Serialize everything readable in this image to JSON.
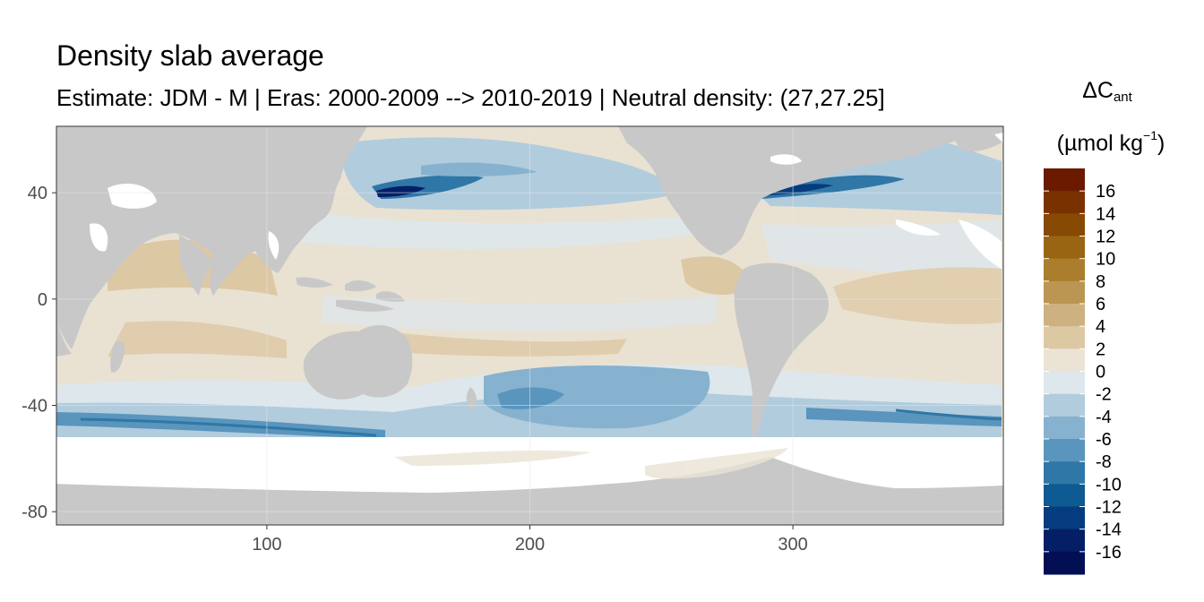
{
  "chart_data": {
    "type": "heatmap",
    "title": "Density slab average",
    "subtitle": "Estimate: JDM - M | Eras: 2000-2009 --> 2010-2019 | Neutral density: (27,27.25]",
    "x_ticks": [
      100,
      200,
      300
    ],
    "y_ticks": [
      40,
      0,
      -40,
      -80
    ],
    "xlim": [
      20,
      380
    ],
    "ylim": [
      -85,
      65
    ],
    "grid": true,
    "colors": {
      "land": "#c8c8c8",
      "ice": "#ffffff",
      "grid": "#e6e6e6",
      "frame": "#333333"
    },
    "legend": {
      "title_main": "ΔC",
      "title_sub": "ant",
      "unit_prefix": "(µmol kg",
      "unit_sup": "−1",
      "unit_suffix": ")",
      "position": "right",
      "labels": [
        "16",
        "14",
        "12",
        "10",
        "8",
        "6",
        "4",
        "2",
        "0",
        "-2",
        "-4",
        "-6",
        "-8",
        "-10",
        "-12",
        "-14",
        "-16"
      ],
      "colors": [
        "#6b1a00",
        "#7a3100",
        "#874a04",
        "#9a6512",
        "#aa7e2c",
        "#bb9653",
        "#cdb180",
        "#ddc8a4",
        "#ebe3d4",
        "#dde7ec",
        "#b1ccdd",
        "#86b2cf",
        "#5995bd",
        "#2f77a6",
        "#0e5a92",
        "#053c7f",
        "#041f66",
        "#020f55"
      ]
    }
  }
}
